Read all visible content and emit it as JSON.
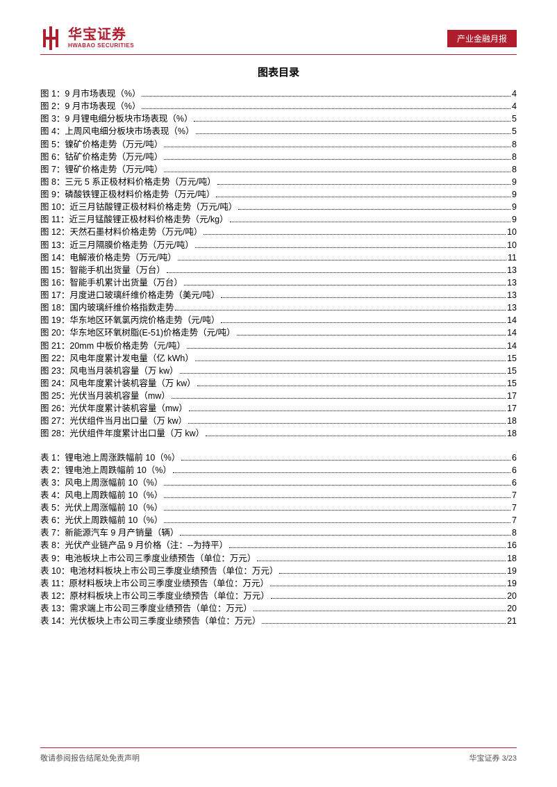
{
  "header": {
    "logo_cn": "华宝证券",
    "logo_en": "HWABAO SECURITIES",
    "logo_color": "#b01e2e",
    "badge": "产业金融月报",
    "badge_bg": "#b01e2e",
    "badge_fg": "#ffffff"
  },
  "title": "图表目录",
  "toc_figures": [
    {
      "label": "图 1：9 月市场表现（%）",
      "page": "4"
    },
    {
      "label": "图 2：9 月市场表现（%）",
      "page": "4"
    },
    {
      "label": "图 3：9 月锂电细分板块市场表现（%）",
      "page": "5"
    },
    {
      "label": "图 4：上周风电细分板块市场表现（%）",
      "page": "5"
    },
    {
      "label": "图 5：镍矿价格走势（万元/吨）",
      "page": "8"
    },
    {
      "label": "图 6：钴矿价格走势（万元/吨）",
      "page": "8"
    },
    {
      "label": "图 7：锂矿价格走势（万元/吨）",
      "page": "8"
    },
    {
      "label": "图 8：三元 5 系正极材料价格走势（万元/吨）",
      "page": "9"
    },
    {
      "label": "图 9：磷酸铁锂正极材料价格走势（万元/吨）",
      "page": "9"
    },
    {
      "label": "图 10：近三月钴酸锂正极材料价格走势（万元/吨）",
      "page": "9"
    },
    {
      "label": "图 11：近三月锰酸锂正极材料价格走势（元/kg）",
      "page": "9"
    },
    {
      "label": "图 12：天然石墨材料价格走势（万元/吨）",
      "page": "10"
    },
    {
      "label": "图 13：近三月隔膜价格走势（万元/吨）",
      "page": "10"
    },
    {
      "label": "图 14：电解液价格走势（万元/吨）",
      "page": "11"
    },
    {
      "label": "图 15：智能手机出货量（万台）",
      "page": "13"
    },
    {
      "label": "图 16：智能手机累计出货量（万台）",
      "page": "13"
    },
    {
      "label": "图 17：月度进口玻璃纤维价格走势（美元/吨）",
      "page": "13"
    },
    {
      "label": "图 18：国内玻璃纤维价格指数走势",
      "page": "13"
    },
    {
      "label": "图 19：华东地区环氧氯丙烷价格走势（元/吨）",
      "page": "14"
    },
    {
      "label": "图 20：华东地区环氧树脂(E-51)价格走势（元/吨）",
      "page": "14"
    },
    {
      "label": "图 21：20mm 中板价格走势（元/吨）",
      "page": "14"
    },
    {
      "label": "图 22：风电年度累计发电量（亿 kWh）",
      "page": "15"
    },
    {
      "label": "图 23：风电当月装机容量（万 kw）",
      "page": "15"
    },
    {
      "label": "图 24：风电年度累计装机容量（万 kw）",
      "page": "15"
    },
    {
      "label": "图 25：光伏当月装机容量（mw）",
      "page": "17"
    },
    {
      "label": "图 26：光伏年度累计装机容量（mw）",
      "page": "17"
    },
    {
      "label": "图 27：光伏组件当月出口量（万 kw）",
      "page": "18"
    },
    {
      "label": "图 28：光伏组件年度累计出口量（万 kw）",
      "page": "18"
    }
  ],
  "toc_tables": [
    {
      "label": "表 1：锂电池上周涨跌幅前 10（%）",
      "page": "6"
    },
    {
      "label": "表 2：锂电池上周跌幅前 10（%）",
      "page": "6"
    },
    {
      "label": "表 3：风电上周涨幅前 10（%）",
      "page": "6"
    },
    {
      "label": "表 4：风电上周跌幅前 10（%）",
      "page": "7"
    },
    {
      "label": "表 5：光伏上周涨幅前 10（%）",
      "page": "7"
    },
    {
      "label": "表 6：光伏上周跌幅前 10（%）",
      "page": "7"
    },
    {
      "label": "表 7：新能源汽车 9 月产销量（辆）",
      "page": "8"
    },
    {
      "label": "表 8：光伏产业链产品 9 月价格（注：--为持平）",
      "page": "16"
    },
    {
      "label": "表 9：电池板块上市公司三季度业绩预告（单位：万元）",
      "page": "18"
    },
    {
      "label": "表 10：电池材料板块上市公司三季度业绩预告（单位：万元）",
      "page": "19"
    },
    {
      "label": "表 11：原材料板块上市公司三季度业绩预告（单位：万元）",
      "page": "19"
    },
    {
      "label": "表 12：原材料板块上市公司三季度业绩预告（单位：万元）",
      "page": "20"
    },
    {
      "label": "表 13：需求端上市公司三季度业绩预告（单位：万元）",
      "page": "20"
    },
    {
      "label": "表 14：光伏板块上市公司三季度业绩预告（单位：万元）",
      "page": "21"
    }
  ],
  "footer": {
    "left": "敬请参阅报告结尾处免责声明",
    "right_prefix": "华宝证券",
    "right_page": "3/23"
  },
  "colors": {
    "accent": "#b01e2e",
    "text": "#000000",
    "footer_text": "#555555",
    "bg": "#ffffff"
  },
  "typography": {
    "body_fontsize_pt": 9,
    "title_fontsize_pt": 11,
    "logo_cn_fontsize_pt": 15,
    "logo_en_fontsize_pt": 6
  }
}
